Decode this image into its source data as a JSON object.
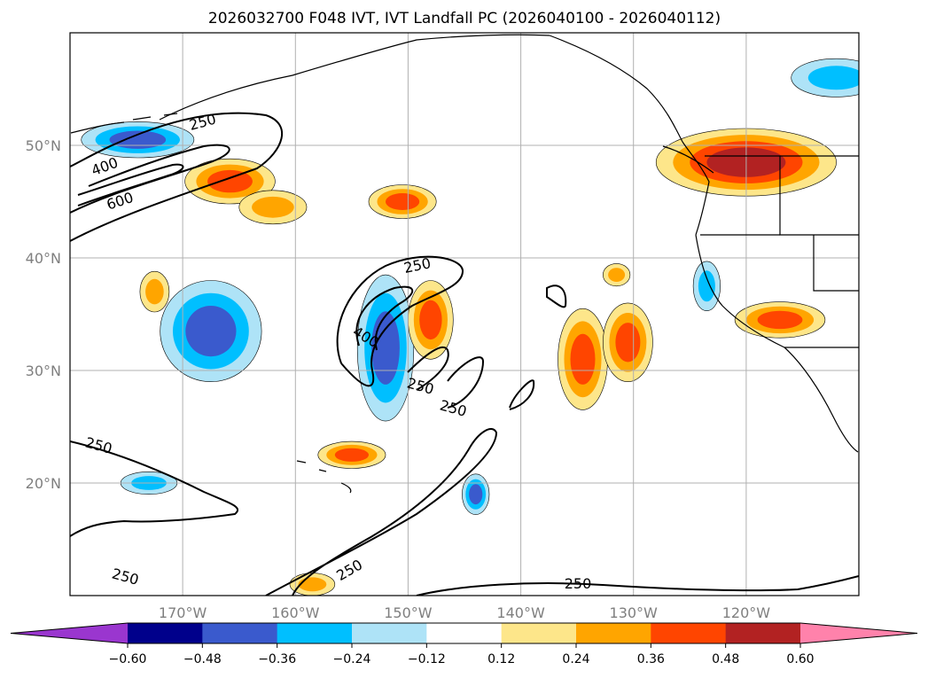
{
  "chart_data": {
    "type": "map-contour",
    "title": "2026032700 F048 IVT, IVT Landfall PC (2026040100 - 2026040112)",
    "xlim": [
      -180,
      -110
    ],
    "ylim": [
      10,
      60
    ],
    "x_ticks": [
      -170,
      -160,
      -150,
      -140,
      -130,
      -120
    ],
    "x_tick_labels": [
      "170°W",
      "160°W",
      "150°W",
      "140°W",
      "130°W",
      "120°W"
    ],
    "y_ticks": [
      20,
      30,
      40,
      50
    ],
    "y_tick_labels": [
      "20°N",
      "30°N",
      "40°N",
      "50°N"
    ],
    "grid": true,
    "colorbar": {
      "orientation": "horizontal",
      "extend": "both",
      "bounds": [
        -0.6,
        -0.48,
        -0.36,
        -0.24,
        -0.12,
        0.12,
        0.24,
        0.36,
        0.48,
        0.6
      ],
      "tick_labels": [
        "−0.60",
        "−0.48",
        "−0.36",
        "−0.24",
        "−0.12",
        "0.12",
        "0.24",
        "0.36",
        "0.48",
        "0.60"
      ],
      "colors": [
        "#9a36cf",
        "#00008b",
        "#3a5acd",
        "#00bfff",
        "#aee3f7",
        "#ffffff",
        "#fde68a",
        "#ffa500",
        "#ff4500",
        "#b22222",
        "#ff82ab"
      ]
    },
    "ivt_contour_labels": [
      "250",
      "400",
      "600",
      "250",
      "400",
      "250",
      "250",
      "250",
      "250",
      "250",
      "250"
    ],
    "contour_levels": [
      250,
      400,
      600
    ],
    "pc_blobs": [
      {
        "lon": -167.5,
        "lat": 33.5,
        "value": -0.45,
        "rx": 4.5,
        "ry": 4.5
      },
      {
        "lon": -152.0,
        "lat": 32.0,
        "value": -0.4,
        "rx": 2.5,
        "ry": 6.5
      },
      {
        "lon": -144.0,
        "lat": 19.0,
        "value": -0.4,
        "rx": 1.2,
        "ry": 1.8
      },
      {
        "lon": -174.0,
        "lat": 50.5,
        "value": -0.42,
        "rx": 5.0,
        "ry": 1.6
      },
      {
        "lon": -112.0,
        "lat": 56.0,
        "value": -0.3,
        "rx": 4.0,
        "ry": 1.7
      },
      {
        "lon": -123.5,
        "lat": 37.5,
        "value": -0.3,
        "rx": 1.2,
        "ry": 2.2
      },
      {
        "lon": -173.0,
        "lat": 20.0,
        "value": -0.28,
        "rx": 2.5,
        "ry": 1.0
      },
      {
        "lon": -165.8,
        "lat": 46.8,
        "value": 0.45,
        "rx": 4.0,
        "ry": 2.0
      },
      {
        "lon": -162.0,
        "lat": 44.5,
        "value": 0.35,
        "rx": 3.0,
        "ry": 1.5
      },
      {
        "lon": -150.5,
        "lat": 45.0,
        "value": 0.4,
        "rx": 3.0,
        "ry": 1.5
      },
      {
        "lon": -148.0,
        "lat": 34.5,
        "value": 0.4,
        "rx": 2.0,
        "ry": 3.5
      },
      {
        "lon": -134.5,
        "lat": 31.0,
        "value": 0.38,
        "rx": 2.2,
        "ry": 4.5
      },
      {
        "lon": -130.5,
        "lat": 32.5,
        "value": 0.38,
        "rx": 2.2,
        "ry": 3.5
      },
      {
        "lon": -120.0,
        "lat": 48.5,
        "value": 0.5,
        "rx": 8.0,
        "ry": 3.0
      },
      {
        "lon": -117.0,
        "lat": 34.5,
        "value": 0.4,
        "rx": 4.0,
        "ry": 1.6
      },
      {
        "lon": -155.0,
        "lat": 22.5,
        "value": 0.36,
        "rx": 3.0,
        "ry": 1.2
      },
      {
        "lon": -172.5,
        "lat": 37.0,
        "value": 0.35,
        "rx": 1.3,
        "ry": 1.8
      },
      {
        "lon": -131.5,
        "lat": 38.5,
        "value": 0.35,
        "rx": 1.2,
        "ry": 1.0
      },
      {
        "lon": -158.5,
        "lat": 11.0,
        "value": 0.35,
        "rx": 2.0,
        "ry": 1.0
      }
    ]
  },
  "colors": {
    "frame": "#000000",
    "grid": "#b0b0b0",
    "contour": "#000000",
    "land": "#ffffff"
  }
}
